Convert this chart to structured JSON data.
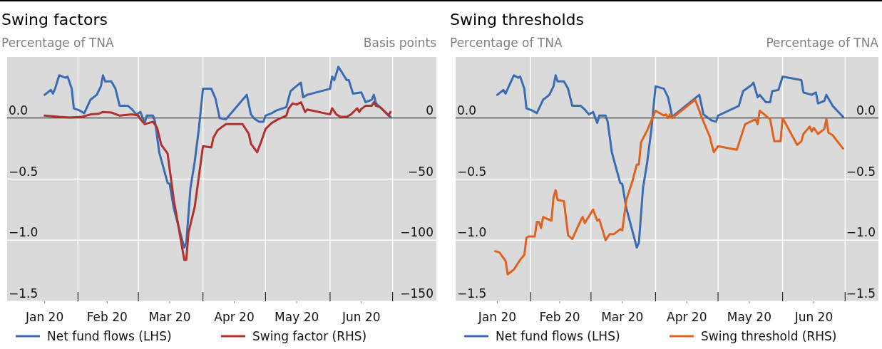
{
  "chart_data": [
    {
      "type": "line",
      "title": "Swing factors",
      "ylabel": "Percentage of TNA",
      "y2label": "Basis points",
      "xlim": [
        "2019-12-29",
        "2020-07-22"
      ],
      "xticks": [
        {
          "value": "2020-01-16",
          "label": "Jan 20"
        },
        {
          "value": "2020-02-01",
          "label": null
        },
        {
          "value": "2020-02-15",
          "label": "Feb 20"
        },
        {
          "value": "2020-03-01",
          "label": null
        },
        {
          "value": "2020-03-16",
          "label": "Mar 20"
        },
        {
          "value": "2020-04-01",
          "label": null
        },
        {
          "value": "2020-04-16",
          "label": "Apr 20"
        },
        {
          "value": "2020-05-01",
          "label": null
        },
        {
          "value": "2020-05-16",
          "label": "May 20"
        },
        {
          "value": "2020-06-01",
          "label": null
        },
        {
          "value": "2020-06-16",
          "label": "Jun 20"
        },
        {
          "value": "2020-07-01",
          "label": null
        }
      ],
      "ylim": [
        -1.5,
        0.5
      ],
      "yticks": [
        {
          "value": 0,
          "label": "0.0"
        },
        {
          "value": -0.5,
          "label": "−0.5"
        },
        {
          "value": -1,
          "label": "−1.0"
        },
        {
          "value": -1.5,
          "label": "−1.5"
        }
      ],
      "y2lim": [
        -150,
        50
      ],
      "y2ticks": [
        0,
        {
          "value": -50,
          "label": "−50"
        },
        {
          "value": -100,
          "label": "−100"
        },
        {
          "value": -150,
          "label": "−150"
        }
      ],
      "grid": true,
      "legend": "bottom",
      "ref_lines": [
        {
          "axis": "y",
          "value": 0,
          "color": "#000000"
        }
      ],
      "series": [
        {
          "name": "Net fund flows (LHS)",
          "color": "#3a6cb4",
          "x": [
            "2020-01-16",
            "2020-01-19",
            "2020-01-20",
            "2020-01-21",
            "2020-01-23",
            "2020-01-26",
            "2020-01-27",
            "2020-01-29",
            "2020-01-30",
            "2020-02-02",
            "2020-02-04",
            "2020-02-07",
            "2020-02-10",
            "2020-02-12",
            "2020-02-13",
            "2020-02-14",
            "2020-02-17",
            "2020-02-19",
            "2020-02-21",
            "2020-02-25",
            "2020-02-27",
            "2020-02-29",
            "2020-03-02",
            "2020-03-04",
            "2020-03-05",
            "2020-03-08",
            "2020-03-09",
            "2020-03-11",
            "2020-03-15",
            "2020-03-16",
            "2020-03-18",
            "2020-03-23",
            "2020-03-24",
            "2020-03-26",
            "2020-03-28",
            "2020-03-30",
            "2020-04-01",
            "2020-04-05",
            "2020-04-07",
            "2020-04-09",
            "2020-04-12",
            "2020-04-22",
            "2020-04-24",
            "2020-04-26",
            "2020-04-28",
            "2020-04-30",
            "2020-05-01",
            "2020-05-04",
            "2020-05-06",
            "2020-05-11",
            "2020-05-13",
            "2020-05-15",
            "2020-05-18",
            "2020-05-19",
            "2020-05-21",
            "2020-06-01",
            "2020-06-02",
            "2020-06-03",
            "2020-06-05",
            "2020-06-09",
            "2020-06-10",
            "2020-06-12",
            "2020-06-16",
            "2020-06-18",
            "2020-06-21",
            "2020-06-22",
            "2020-06-23",
            "2020-06-30"
          ],
          "values": [
            0.19,
            0.23,
            0.2,
            0.24,
            0.35,
            0.33,
            0.34,
            0.24,
            0.08,
            0.06,
            0.04,
            0.15,
            0.19,
            0.26,
            0.35,
            0.3,
            0.3,
            0.24,
            0.1,
            0.1,
            0.07,
            0.03,
            0.05,
            -0.04,
            0.02,
            0.02,
            -0.03,
            -0.28,
            -0.53,
            -0.54,
            -0.74,
            -1.06,
            -1.02,
            -0.57,
            -0.36,
            -0.09,
            0.24,
            0.24,
            0.16,
            0.0,
            -0.01,
            0.19,
            0.03,
            -0.01,
            -0.03,
            -0.03,
            0.02,
            0.04,
            0.06,
            0.09,
            0.22,
            0.25,
            0.29,
            0.17,
            0.19,
            0.24,
            0.34,
            0.31,
            0.42,
            0.31,
            0.31,
            0.2,
            0.21,
            0.13,
            0.15,
            0.19,
            0.12,
            0.01
          ]
        },
        {
          "name": "Swing factor (RHS)",
          "color": "#b2302e",
          "axis": "y2",
          "x": [
            "2020-01-16",
            "2020-01-23",
            "2020-01-28",
            "2020-02-03",
            "2020-02-07",
            "2020-02-11",
            "2020-02-13",
            "2020-02-17",
            "2020-02-21",
            "2020-02-27",
            "2020-03-01",
            "2020-03-02",
            "2020-03-04",
            "2020-03-08",
            "2020-03-10",
            "2020-03-12",
            "2020-03-15",
            "2020-03-18",
            "2020-03-23",
            "2020-03-24",
            "2020-03-25",
            "2020-03-28",
            "2020-04-01",
            "2020-04-05",
            "2020-04-06",
            "2020-04-08",
            "2020-04-12",
            "2020-04-20",
            "2020-04-23",
            "2020-04-24",
            "2020-04-27",
            "2020-04-29",
            "2020-05-01",
            "2020-05-04",
            "2020-05-07",
            "2020-05-11",
            "2020-05-12",
            "2020-05-14",
            "2020-05-16",
            "2020-05-18",
            "2020-05-20",
            "2020-05-21",
            "2020-06-01",
            "2020-06-02",
            "2020-06-04",
            "2020-06-06",
            "2020-06-09",
            "2020-06-11",
            "2020-06-14",
            "2020-06-15",
            "2020-06-16",
            "2020-06-18",
            "2020-06-21",
            "2020-06-22",
            "2020-06-23",
            "2020-06-25",
            "2020-06-29",
            "2020-06-30"
          ],
          "values": [
            2,
            1,
            0.5,
            1,
            3,
            3.5,
            5,
            4.5,
            2,
            3,
            2,
            -1,
            -5,
            -3,
            -8,
            -22,
            -29,
            -67,
            -116,
            -116,
            -94,
            -73,
            -23,
            -24,
            -16,
            -10,
            -5,
            -5,
            -13,
            -21,
            -28,
            -19,
            -9,
            -4,
            -1,
            2,
            7.5,
            12,
            11,
            13,
            5,
            7,
            3,
            8,
            3,
            1,
            1,
            3,
            8,
            5,
            7.5,
            10,
            10,
            13,
            10,
            9,
            2,
            5
          ]
        }
      ]
    },
    {
      "type": "line",
      "title": "Swing thresholds",
      "ylabel": "Percentage of TNA",
      "y2label": "Percentage of TNA",
      "xlim": [
        "2019-12-27",
        "2020-07-17"
      ],
      "xticks": [
        {
          "value": "2020-01-16",
          "label": "Jan 20"
        },
        {
          "value": "2020-02-01",
          "label": null
        },
        {
          "value": "2020-02-15",
          "label": "Feb 20"
        },
        {
          "value": "2020-03-01",
          "label": null
        },
        {
          "value": "2020-03-16",
          "label": "Mar 20"
        },
        {
          "value": "2020-04-01",
          "label": null
        },
        {
          "value": "2020-04-16",
          "label": "Apr 20"
        },
        {
          "value": "2020-05-01",
          "label": null
        },
        {
          "value": "2020-05-16",
          "label": "May 20"
        },
        {
          "value": "2020-06-01",
          "label": null
        },
        {
          "value": "2020-06-16",
          "label": "Jun 20"
        },
        {
          "value": "2020-07-01",
          "label": null
        }
      ],
      "ylim": [
        -1.5,
        0.5
      ],
      "yticks": [
        {
          "value": 0,
          "label": "0.0"
        },
        {
          "value": -0.5,
          "label": "−0.5"
        },
        {
          "value": -1,
          "label": "−1.0"
        },
        {
          "value": -1.5,
          "label": "−1.5"
        }
      ],
      "y2lim": [
        -1.5,
        0.5
      ],
      "y2ticks": [
        {
          "value": 0,
          "label": "0.0"
        },
        {
          "value": -0.5,
          "label": "−0.5"
        },
        {
          "value": -1,
          "label": "−1.0"
        },
        {
          "value": -1.5,
          "label": "−1.5"
        }
      ],
      "grid": true,
      "legend": "bottom",
      "ref_lines": [
        {
          "axis": "y",
          "value": 0,
          "color": "#000000"
        }
      ],
      "series": [
        {
          "name": "Net fund flows (LHS)",
          "color": "#3a6cb4",
          "x": [
            "2020-01-16",
            "2020-01-19",
            "2020-01-20",
            "2020-01-21",
            "2020-01-24",
            "2020-01-26",
            "2020-01-27",
            "2020-01-29",
            "2020-01-30",
            "2020-02-02",
            "2020-02-04",
            "2020-02-07",
            "2020-02-10",
            "2020-02-12",
            "2020-02-13",
            "2020-02-14",
            "2020-02-17",
            "2020-02-19",
            "2020-02-21",
            "2020-02-25",
            "2020-02-27",
            "2020-02-29",
            "2020-03-02",
            "2020-03-04",
            "2020-03-05",
            "2020-03-08",
            "2020-03-09",
            "2020-03-11",
            "2020-03-15",
            "2020-03-16",
            "2020-03-18",
            "2020-03-23",
            "2020-03-24",
            "2020-03-26",
            "2020-03-28",
            "2020-03-30",
            "2020-04-01",
            "2020-04-05",
            "2020-04-07",
            "2020-04-09",
            "2020-04-22",
            "2020-04-24",
            "2020-04-28",
            "2020-04-30",
            "2020-05-01",
            "2020-05-11",
            "2020-05-13",
            "2020-05-17",
            "2020-05-18",
            "2020-05-20",
            "2020-05-21",
            "2020-05-24",
            "2020-05-26",
            "2020-05-27",
            "2020-05-30",
            "2020-06-01",
            "2020-06-10",
            "2020-06-11",
            "2020-06-15",
            "2020-06-17",
            "2020-06-18",
            "2020-06-21",
            "2020-06-22",
            "2020-06-25",
            "2020-06-30"
          ],
          "values": [
            0.19,
            0.23,
            0.2,
            0.24,
            0.35,
            0.33,
            0.34,
            0.24,
            0.08,
            0.06,
            0.04,
            0.15,
            0.19,
            0.26,
            0.35,
            0.3,
            0.3,
            0.24,
            0.1,
            0.1,
            0.07,
            0.03,
            0.05,
            -0.04,
            0.02,
            0.02,
            -0.03,
            -0.28,
            -0.53,
            -0.54,
            -0.74,
            -1.06,
            -1.02,
            -0.57,
            -0.36,
            -0.09,
            0.26,
            0.24,
            0.17,
            0.01,
            0.19,
            0.03,
            -0.02,
            -0.03,
            0.02,
            0.1,
            0.22,
            0.27,
            0.29,
            0.17,
            0.19,
            0.13,
            0.13,
            0.22,
            0.23,
            0.34,
            0.31,
            0.21,
            0.19,
            0.21,
            0.12,
            0.14,
            0.19,
            0.1,
            0.01
          ]
        },
        {
          "name": "Swing threshold (RHS)",
          "color": "#e0621f",
          "axis": "y2",
          "x": [
            "2020-01-15",
            "2020-01-17",
            "2020-01-20",
            "2020-01-21",
            "2020-01-24",
            "2020-01-27",
            "2020-01-29",
            "2020-01-30",
            "2020-01-31",
            "2020-02-03",
            "2020-02-04",
            "2020-02-05",
            "2020-02-06",
            "2020-02-07",
            "2020-02-11",
            "2020-02-12",
            "2020-02-13",
            "2020-02-14",
            "2020-02-17",
            "2020-02-19",
            "2020-02-21",
            "2020-02-25",
            "2020-02-26",
            "2020-02-27",
            "2020-03-02",
            "2020-03-04",
            "2020-03-05",
            "2020-03-08",
            "2020-03-10",
            "2020-03-12",
            "2020-03-15",
            "2020-03-16",
            "2020-03-18",
            "2020-03-21",
            "2020-03-23",
            "2020-03-24",
            "2020-03-25",
            "2020-03-28",
            "2020-04-01",
            "2020-04-05",
            "2020-04-06",
            "2020-04-07",
            "2020-04-08",
            "2020-04-09",
            "2020-04-20",
            "2020-04-24",
            "2020-04-27",
            "2020-04-28",
            "2020-04-29",
            "2020-05-01",
            "2020-05-10",
            "2020-05-14",
            "2020-05-19",
            "2020-05-20",
            "2020-05-21",
            "2020-05-26",
            "2020-05-28",
            "2020-05-31",
            "2020-06-01",
            "2020-06-08",
            "2020-06-10",
            "2020-06-11",
            "2020-06-14",
            "2020-06-15",
            "2020-06-16",
            "2020-06-18",
            "2020-06-21",
            "2020-06-22",
            "2020-06-23",
            "2020-06-25",
            "2020-06-30"
          ],
          "values": [
            -1.09,
            -1.1,
            -1.17,
            -1.28,
            -1.24,
            -1.16,
            -1.12,
            -0.98,
            -0.97,
            -0.97,
            -0.85,
            -0.85,
            -0.9,
            -0.81,
            -0.84,
            -0.65,
            -0.59,
            -0.67,
            -0.68,
            -0.96,
            -0.99,
            -0.84,
            -0.81,
            -0.86,
            -0.75,
            -0.84,
            -0.83,
            -1.0,
            -0.95,
            -0.95,
            -0.91,
            -0.92,
            -0.67,
            -0.51,
            -0.38,
            -0.38,
            -0.2,
            -0.1,
            0.06,
            0.02,
            0.03,
            0.0,
            0.03,
            0.0,
            0.15,
            -0.03,
            -0.15,
            -0.22,
            -0.28,
            -0.23,
            -0.26,
            -0.05,
            -0.01,
            -0.05,
            0.06,
            -0.01,
            -0.19,
            -0.19,
            0.0,
            -0.22,
            -0.19,
            -0.13,
            -0.07,
            -0.11,
            -0.08,
            -0.13,
            -0.09,
            -0.01,
            -0.12,
            -0.14,
            -0.25
          ]
        }
      ]
    }
  ]
}
